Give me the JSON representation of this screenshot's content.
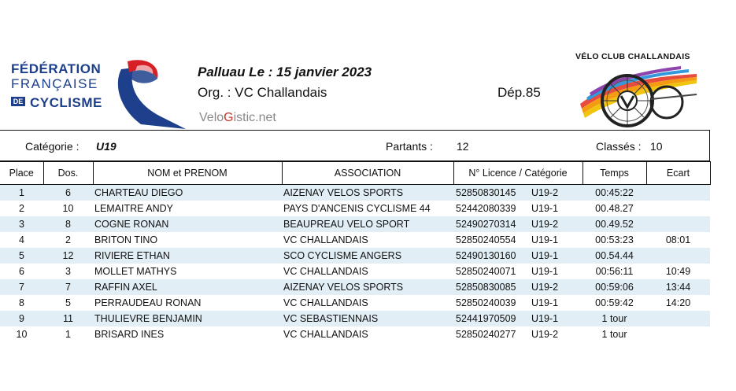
{
  "ffc_logo": {
    "line1": "FÉDÉRATION",
    "line2": "FRANÇAISE",
    "de": "DE",
    "line3": "CYCLISME"
  },
  "header": {
    "event": "Palluau  Le :  15 janvier 2023",
    "org": "Org. :  VC Challandais",
    "dep": "Dép.85",
    "velogistic_a": "Velo",
    "velogistic_b": "G",
    "velogistic_c": "istic.net"
  },
  "vcc_logo": {
    "title": "VÉLO CLUB CHALLANDAIS"
  },
  "summary": {
    "categorie_label": "Catégorie :",
    "categorie_value": "U19",
    "partants_label": "Partants :",
    "partants_value": "12",
    "classes_label": "Classés :",
    "classes_value": "10"
  },
  "table": {
    "headers": [
      "Place",
      "Dos.",
      "NOM et PRENOM",
      "ASSOCIATION",
      "N° Licence / Catégorie",
      "Temps",
      "Ecart"
    ],
    "rows": [
      {
        "place": "1",
        "dos": "6",
        "nom": "CHARTEAU   DIEGO",
        "assoc": "AIZENAY VELOS SPORTS",
        "licence": "52850830145",
        "cat": "U19-2",
        "temps": "00:45:22",
        "ecart": ""
      },
      {
        "place": "2",
        "dos": "10",
        "nom": "LEMAITRE   ANDY",
        "assoc": "PAYS D'ANCENIS CYCLISME 44",
        "licence": "52442080339",
        "cat": "U19-1",
        "temps": "00.48.27",
        "ecart": ""
      },
      {
        "place": "3",
        "dos": "8",
        "nom": "COGNE   RONAN",
        "assoc": "BEAUPREAU VELO SPORT",
        "licence": "52490270314",
        "cat": "U19-2",
        "temps": "00.49.52",
        "ecart": ""
      },
      {
        "place": "4",
        "dos": "2",
        "nom": "BRITON   TINO",
        "assoc": "VC CHALLANDAIS",
        "licence": "52850240554",
        "cat": "U19-1",
        "temps": "00:53:23",
        "ecart": "08:01"
      },
      {
        "place": "5",
        "dos": "12",
        "nom": "RIVIERE   ETHAN",
        "assoc": "SCO CYCLISME ANGERS",
        "licence": "52490130160",
        "cat": "U19-1",
        "temps": "00.54.44",
        "ecart": ""
      },
      {
        "place": "6",
        "dos": "3",
        "nom": "MOLLET   MATHYS",
        "assoc": "VC CHALLANDAIS",
        "licence": "52850240071",
        "cat": "U19-1",
        "temps": "00:56:11",
        "ecart": "10:49"
      },
      {
        "place": "7",
        "dos": "7",
        "nom": "RAFFIN   AXEL",
        "assoc": "AIZENAY VELOS SPORTS",
        "licence": "52850830085",
        "cat": "U19-2",
        "temps": "00:59:06",
        "ecart": "13:44"
      },
      {
        "place": "8",
        "dos": "5",
        "nom": "PERRAUDEAU   RONAN",
        "assoc": "VC CHALLANDAIS",
        "licence": "52850240039",
        "cat": "U19-1",
        "temps": "00:59:42",
        "ecart": "14:20"
      },
      {
        "place": "9",
        "dos": "11",
        "nom": "THULIEVRE   BENJAMIN",
        "assoc": "VC SEBASTIENNAIS",
        "licence": "52441970509",
        "cat": "U19-1",
        "temps": "1 tour",
        "ecart": ""
      },
      {
        "place": "10",
        "dos": "1",
        "nom": "BRISARD   INES",
        "assoc": "VC CHALLANDAIS",
        "licence": "52850240277",
        "cat": "U19-2",
        "temps": "1 tour",
        "ecart": ""
      }
    ]
  }
}
